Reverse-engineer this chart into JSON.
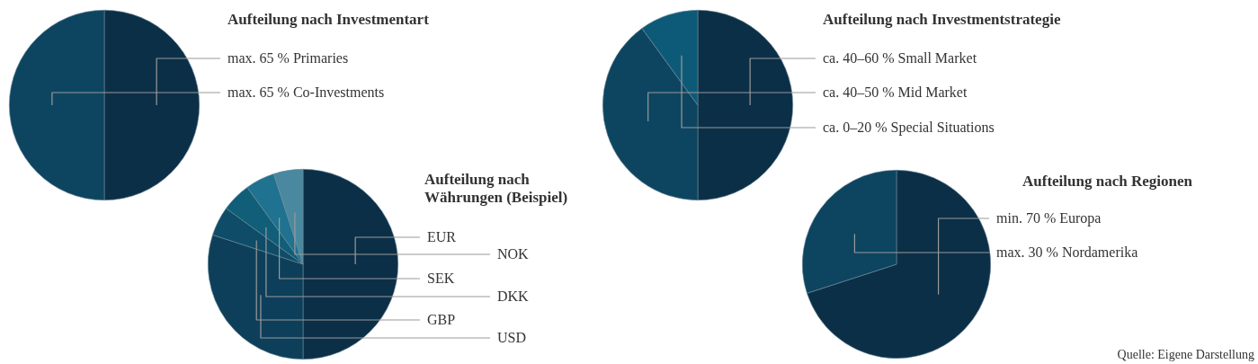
{
  "chart_data": [
    {
      "type": "pie",
      "title": "Aufteilung nach Investmentart",
      "categories": [
        "max. 65 % Primaries",
        "max. 65 % Co-Investments"
      ],
      "values": [
        50,
        50
      ],
      "colors": [
        "#0b2f47",
        "#0d4560"
      ]
    },
    {
      "type": "pie",
      "title": "Aufteilung nach Investmentstrategie",
      "categories": [
        "ca. 40–60 % Small Market",
        "ca. 40–50 % Mid Market",
        "ca. 0–20 % Special Situations"
      ],
      "values": [
        50,
        40,
        10
      ],
      "colors": [
        "#0b2f47",
        "#0d4560",
        "#0d5a78"
      ]
    },
    {
      "type": "pie",
      "title": "Aufteilung nach Währungen (Beispiel)",
      "categories": [
        "EUR",
        "USD",
        "GBP",
        "DKK",
        "SEK",
        "NOK"
      ],
      "values": [
        50,
        30,
        5,
        5,
        5,
        5
      ],
      "colors": [
        "#0b2f47",
        "#0d3f5a",
        "#0e4c68",
        "#105e78",
        "#1f7290",
        "#4a88a0"
      ]
    },
    {
      "type": "pie",
      "title": "Aufteilung nach Regionen",
      "categories": [
        "min. 70 % Europa",
        "max. 30 % Nordamerika"
      ],
      "values": [
        70,
        30
      ],
      "colors": [
        "#0b2f47",
        "#0d4560"
      ],
      "annotations": [
        "Quelle: Eigene Darstellung"
      ]
    }
  ]
}
